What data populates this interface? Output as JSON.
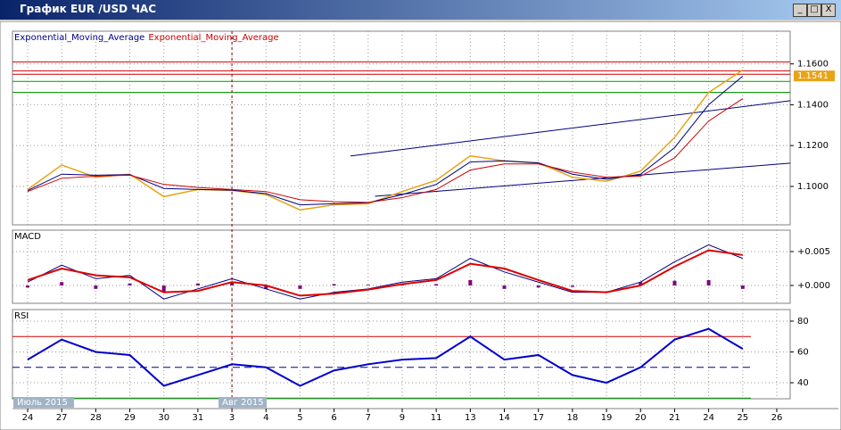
{
  "window": {
    "title": "График EUR /USD ЧАС"
  },
  "periods": [
    "Июль 2015",
    "Авг 2015"
  ],
  "chart_data": [
    {
      "type": "line",
      "legend": [
        "Exponential_Moving_Average",
        "Exponential_Moving_Average"
      ],
      "categories": [
        "24",
        "27",
        "28",
        "29",
        "30",
        "31",
        "3",
        "4",
        "5",
        "6",
        "7",
        "9",
        "11",
        "13",
        "14",
        "17",
        "18",
        "19",
        "20",
        "21",
        "24",
        "25",
        "26"
      ],
      "price": {
        "color": "#e8a317",
        "values": [
          1.0985,
          1.1105,
          1.1045,
          1.106,
          1.095,
          1.0985,
          1.098,
          1.096,
          1.0885,
          1.091,
          1.0915,
          1.0975,
          1.103,
          1.115,
          1.1125,
          1.1115,
          1.1045,
          1.1025,
          1.1075,
          1.124,
          1.146,
          1.157,
          null
        ]
      },
      "last_price": 1.1541,
      "series": [
        {
          "name": "Exponential_Moving_Average",
          "color": "#000080",
          "values": [
            1.098,
            1.106,
            1.1055,
            1.1058,
            1.099,
            1.0985,
            1.0982,
            1.0965,
            1.091,
            1.0915,
            1.092,
            1.096,
            1.101,
            1.112,
            1.1125,
            1.1115,
            1.106,
            1.1035,
            1.106,
            1.119,
            1.14,
            1.154,
            null
          ]
        },
        {
          "name": "Exponential_Moving_Average",
          "color": "#cc0000",
          "values": [
            1.0975,
            1.104,
            1.105,
            1.1055,
            1.101,
            1.0995,
            1.0985,
            1.0975,
            1.0935,
            1.0925,
            1.0922,
            1.0945,
            1.0985,
            1.108,
            1.111,
            1.111,
            1.107,
            1.1045,
            1.105,
            1.114,
            1.132,
            1.143,
            null
          ]
        }
      ],
      "levels": [
        {
          "value": 1.161,
          "color": "#cc0000"
        },
        {
          "value": 1.1566,
          "color": "#cc0000"
        },
        {
          "value": 1.1549,
          "color": "#cc0000"
        },
        {
          "value": 1.1514,
          "color": "#009900"
        },
        {
          "value": 1.1461,
          "color": "#009900"
        }
      ],
      "trendlines": [
        {
          "color": "#000080",
          "x": [
            9.48,
            22.4
          ],
          "y": [
            1.1149,
            1.142
          ]
        },
        {
          "color": "#000080",
          "x": [
            10.2,
            22.4
          ],
          "y": [
            1.0952,
            1.1114
          ]
        }
      ],
      "ylim": [
        1.0812,
        1.176
      ],
      "yticks": [
        {
          "value": 1.1,
          "label": "1.1000"
        },
        {
          "value": 1.12,
          "label": "1.1200"
        },
        {
          "value": 1.14,
          "label": "1.1400"
        },
        {
          "value": 1.16,
          "label": "1.1600"
        }
      ],
      "grid": true
    },
    {
      "type": "macd",
      "title": "MACD",
      "series": [
        {
          "color": "#000080",
          "values": [
            0.0005,
            0.003,
            0.001,
            0.0015,
            -0.002,
            -0.0005,
            0.001,
            -0.0005,
            -0.002,
            -0.001,
            -0.0005,
            0.0005,
            0.001,
            0.004,
            0.002,
            0.0005,
            -0.001,
            -0.001,
            0.0005,
            0.0035,
            0.006,
            0.004,
            null
          ]
        },
        {
          "color": "#dd0000",
          "values": [
            0.0008,
            0.0025,
            0.0015,
            0.0012,
            -0.001,
            -0.0008,
            0.0005,
            0.0,
            -0.0015,
            -0.0012,
            -0.0006,
            0.0002,
            0.0008,
            0.0032,
            0.0025,
            0.0008,
            -0.0008,
            -0.001,
            0.0,
            0.0028,
            0.0052,
            0.0045,
            null
          ]
        }
      ],
      "histogram": {
        "color": "#800080",
        "values": [
          -0.0003,
          0.0005,
          -0.0005,
          0.0003,
          -0.001,
          0.0003,
          0.0005,
          -0.0005,
          -0.0005,
          0.0002,
          0.0001,
          0.0003,
          0.0002,
          0.0008,
          -0.0005,
          -0.0003,
          -0.0002,
          0,
          0.0005,
          0.0007,
          0.0008,
          -0.0005,
          null
        ]
      },
      "ylim": [
        -0.00263,
        0.00816
      ],
      "yticks": [
        {
          "value": 0,
          "label": "+0.000"
        },
        {
          "value": 0.005,
          "label": "+0.005"
        }
      ],
      "grid": true
    },
    {
      "type": "rsi",
      "title": "RSI",
      "series": [
        {
          "color": "#0000cc",
          "values": [
            55,
            68,
            60,
            58,
            38,
            45,
            52,
            50,
            38,
            48,
            52,
            55,
            56,
            70,
            55,
            58,
            45,
            40,
            50,
            68,
            75,
            62,
            null
          ]
        }
      ],
      "levels": [
        {
          "value": 70,
          "color": "#cc0000"
        },
        {
          "value": 50,
          "color": "#000080",
          "dashed": true
        },
        {
          "value": 30,
          "color": "#009900"
        }
      ],
      "ylim": [
        29.6,
        87.5
      ],
      "yticks": [
        40,
        60,
        80
      ],
      "grid": true
    }
  ]
}
